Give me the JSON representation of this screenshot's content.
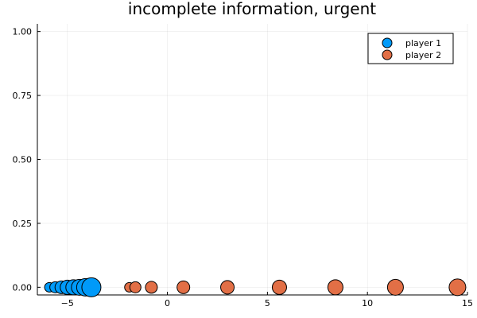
{
  "chart_data": {
    "type": "scatter",
    "title": "incomplete information, urgent",
    "xlabel": "",
    "ylabel": "",
    "xlim": [
      -6.5,
      15
    ],
    "ylim": [
      -0.03,
      1.03
    ],
    "xticks": [
      -5,
      0,
      5,
      10,
      15
    ],
    "xtick_labels": [
      "−5",
      "0",
      "5",
      "10",
      "15"
    ],
    "yticks": [
      0.0,
      0.25,
      0.5,
      0.75,
      1.0
    ],
    "ytick_labels": [
      "0.00",
      "0.25",
      "0.50",
      "0.75",
      "1.00"
    ],
    "grid": true,
    "legend_position": "top-right",
    "series": [
      {
        "name": "player 1",
        "color": "#009af9",
        "x": [
          -5.9,
          -5.6,
          -5.3,
          -5.0,
          -4.7,
          -4.4,
          -4.1,
          -3.8
        ],
        "y": [
          0,
          0,
          0,
          0,
          0,
          0,
          0,
          0
        ],
        "sizes": [
          6,
          7,
          8,
          9,
          9.5,
          10,
          11,
          12
        ]
      },
      {
        "name": "player 2",
        "color": "#e26f46",
        "x": [
          -1.9,
          -1.6,
          -0.8,
          0.8,
          3.0,
          5.6,
          8.4,
          11.4,
          14.5
        ],
        "y": [
          0,
          0,
          0,
          0,
          0,
          0,
          0,
          0,
          0
        ],
        "sizes": [
          6,
          7,
          7.5,
          8,
          8.5,
          9,
          9.5,
          10,
          10.5
        ]
      }
    ]
  }
}
